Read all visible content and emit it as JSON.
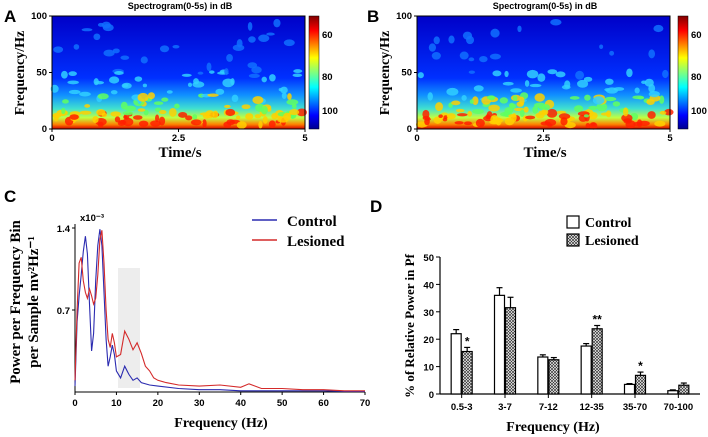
{
  "panels": {
    "a": "A",
    "b": "B",
    "c": "C",
    "d": "D"
  },
  "chart_data": [
    {
      "id": "A",
      "type": "heatmap",
      "title": "Spectrogram(0-5s) in dB",
      "xlabel": "Time/s",
      "ylabel": "Frequency/Hz",
      "xticks": [
        "0",
        "2.5",
        "5"
      ],
      "yticks": [
        "0",
        "50",
        "100"
      ],
      "xlim": [
        0,
        5
      ],
      "ylim": [
        0,
        100
      ],
      "colorbar": {
        "ticks": [
          "60",
          "80",
          "100"
        ]
      }
    },
    {
      "id": "B",
      "type": "heatmap",
      "title": "Spectrogram(0-5s) in dB",
      "xlabel": "Time/s",
      "ylabel": "Frequency/Hz",
      "xticks": [
        "0",
        "2.5",
        "5"
      ],
      "yticks": [
        "0",
        "50",
        "100"
      ],
      "xlim": [
        0,
        5
      ],
      "ylim": [
        0,
        100
      ],
      "colorbar": {
        "ticks": [
          "60",
          "80",
          "100"
        ]
      }
    },
    {
      "id": "C",
      "type": "line",
      "xlabel": "Frequency (Hz)",
      "ylabel_lines": [
        "Power per Frequency Bin",
        "per Sample mv²Hz⁻¹"
      ],
      "scale_label": "x10⁻³",
      "xlim": [
        0,
        70
      ],
      "ylim": [
        0,
        1.4
      ],
      "xticks": [
        0,
        10,
        20,
        30,
        40,
        50,
        60,
        70
      ],
      "yticks": [
        0.7,
        1.4
      ],
      "series": [
        {
          "name": "Control",
          "color": "#2b2bb0",
          "x": [
            0,
            0.5,
            1,
            1.5,
            2,
            2.5,
            3,
            3.5,
            4,
            4.5,
            5,
            5.5,
            6,
            6.5,
            7,
            7.5,
            8,
            8.5,
            9,
            9.5,
            10,
            11,
            12,
            13,
            14,
            15,
            16,
            18,
            20,
            25,
            30,
            35,
            40,
            45,
            50,
            55,
            60,
            65,
            70
          ],
          "y": [
            0.05,
            0.6,
            0.82,
            1.0,
            1.2,
            1.33,
            1.18,
            0.75,
            0.35,
            0.5,
            0.95,
            1.25,
            1.39,
            1.25,
            0.85,
            0.45,
            0.22,
            0.3,
            0.4,
            0.32,
            0.18,
            0.12,
            0.22,
            0.15,
            0.1,
            0.12,
            0.08,
            0.06,
            0.05,
            0.03,
            0.02,
            0.02,
            0.01,
            0.01,
            0.01,
            0.01,
            0.01,
            0.005,
            0.005
          ]
        },
        {
          "name": "Lesioned",
          "color": "#d42a2a",
          "x": [
            0,
            0.5,
            1,
            1.5,
            2,
            2.5,
            3,
            3.5,
            4,
            4.5,
            5,
            5.5,
            6,
            6.5,
            7,
            7.5,
            8,
            8.5,
            9,
            9.5,
            10,
            11,
            12,
            13,
            14,
            15,
            16,
            17,
            18,
            19,
            20,
            22,
            25,
            30,
            35,
            40,
            42,
            45,
            50,
            55,
            60,
            65,
            70
          ],
          "y": [
            0.1,
            0.7,
            1.1,
            1.15,
            0.95,
            0.85,
            0.8,
            0.88,
            0.82,
            0.75,
            0.8,
            1.0,
            1.3,
            1.38,
            1.1,
            0.7,
            0.45,
            0.38,
            0.5,
            0.42,
            0.3,
            0.32,
            0.52,
            0.45,
            0.36,
            0.42,
            0.33,
            0.22,
            0.18,
            0.12,
            0.1,
            0.08,
            0.06,
            0.05,
            0.06,
            0.04,
            0.07,
            0.03,
            0.03,
            0.02,
            0.02,
            0.01,
            0.01
          ]
        }
      ]
    },
    {
      "id": "D",
      "type": "bar",
      "categories": [
        "0.5-3",
        "3-7",
        "7-12",
        "12-35",
        "35-70",
        "70-100"
      ],
      "series": [
        {
          "name": "Control",
          "values": [
            22,
            36,
            13.5,
            17.5,
            3.5,
            1.2
          ],
          "errors": [
            1.5,
            2.8,
            0.8,
            0.9,
            0.3,
            0.3
          ]
        },
        {
          "name": "Lesioned",
          "values": [
            15.5,
            31.5,
            12.5,
            23.8,
            6.8,
            3.2
          ],
          "errors": [
            1.5,
            3.8,
            0.8,
            1.2,
            1.2,
            0.8
          ]
        }
      ],
      "significance": [
        "*",
        "",
        "",
        "**",
        "*",
        ""
      ],
      "xlabel": "Frequency (Hz)",
      "ylabel": "% of Relative Power in Pf",
      "ylim": [
        0,
        50
      ],
      "yticks": [
        0,
        10,
        20,
        30,
        40,
        50
      ]
    }
  ]
}
